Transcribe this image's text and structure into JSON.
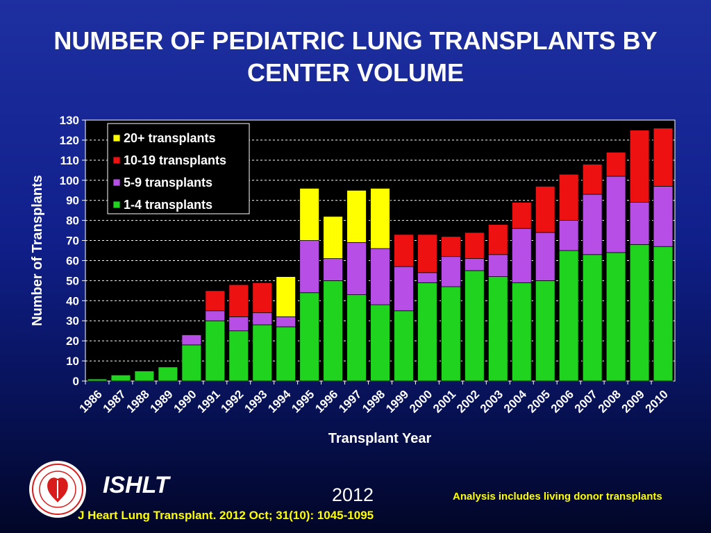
{
  "title_line1": "NUMBER OF PEDIATRIC LUNG TRANSPLANTS BY",
  "title_line2": "CENTER VOLUME",
  "footer": {
    "org": "ISHLT",
    "year": "2012",
    "note": "Analysis includes living donor transplants",
    "citation": "J Heart Lung Transplant.  2012 Oct; 31(10): 1045-1095",
    "logo_text": "International Society for Heart & Lung Transplantation"
  },
  "colors": {
    "plot_bg": "#000000",
    "grid": "#ffffff",
    "tick_text": "#ffffff",
    "legend_bg": "#000000"
  },
  "chart_data": {
    "type": "bar",
    "stacked": true,
    "xlabel": "Transplant Year",
    "ylabel": "Number of Transplants",
    "ylim": [
      0,
      130
    ],
    "yticks": [
      0,
      10,
      20,
      30,
      40,
      50,
      60,
      70,
      80,
      90,
      100,
      110,
      120,
      130
    ],
    "grid": "dashed horizontal",
    "legend_position": "top-left",
    "categories": [
      "1986",
      "1987",
      "1988",
      "1989",
      "1990",
      "1991",
      "1992",
      "1993",
      "1994",
      "1995",
      "1996",
      "1997",
      "1998",
      "1999",
      "2000",
      "2001",
      "2002",
      "2003",
      "2004",
      "2005",
      "2006",
      "2007",
      "2008",
      "2009",
      "2010"
    ],
    "series": [
      {
        "name": "1-4 transplants",
        "color": "#1fd31f",
        "values": [
          1,
          3,
          5,
          7,
          18,
          30,
          25,
          28,
          27,
          44,
          50,
          43,
          38,
          35,
          49,
          47,
          55,
          52,
          49,
          50,
          65,
          63,
          64,
          68,
          67
        ]
      },
      {
        "name": "5-9 transplants",
        "color": "#b74fe6",
        "values": [
          0,
          0,
          0,
          0,
          5,
          5,
          7,
          6,
          5,
          26,
          11,
          26,
          28,
          22,
          5,
          15,
          6,
          11,
          27,
          24,
          15,
          30,
          38,
          21,
          30
        ]
      },
      {
        "name": "10-19 transplants",
        "color": "#ee1111",
        "values": [
          0,
          0,
          0,
          0,
          0,
          10,
          16,
          15,
          0,
          0,
          0,
          0,
          0,
          16,
          19,
          10,
          13,
          15,
          13,
          23,
          23,
          15,
          12,
          36,
          29
        ]
      },
      {
        "name": "20+ transplants",
        "color": "#ffff00",
        "values": [
          0,
          0,
          0,
          0,
          0,
          0,
          0,
          0,
          20,
          26,
          21,
          26,
          30,
          0,
          0,
          0,
          0,
          0,
          0,
          0,
          0,
          0,
          0,
          0,
          0
        ]
      }
    ]
  }
}
